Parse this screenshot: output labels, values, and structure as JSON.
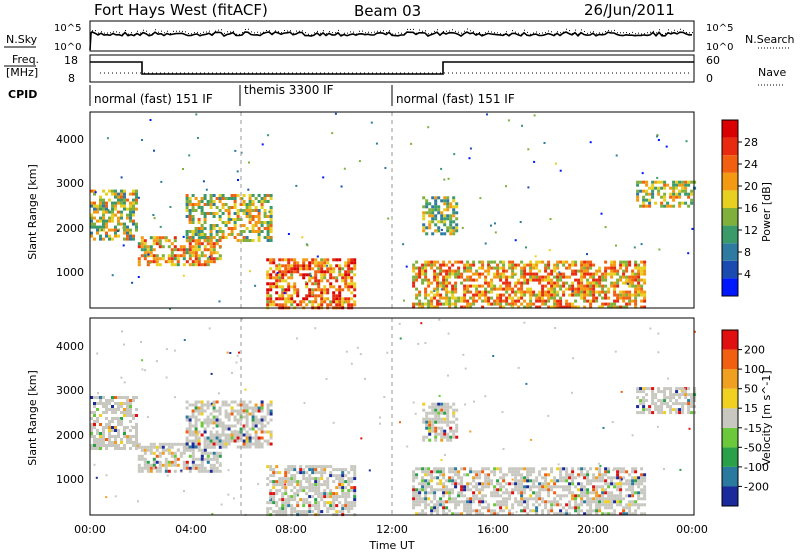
{
  "header": {
    "station": "Fort Hays West (fitACF)",
    "beam": "Beam 03",
    "date": "26/Jun/2011"
  },
  "left_labels": {
    "nsky": "N.Sky",
    "freq_line1": "Freq.",
    "freq_line2": "[MHz]",
    "cpid": "CPID"
  },
  "right_labels": {
    "nsearch": "N.Search",
    "nave": "Nave"
  },
  "noise_panel": {
    "ticks": [
      "10^5",
      "10^0"
    ],
    "right_ticks": [
      "10^5",
      "10^0"
    ]
  },
  "freq_panel": {
    "ticks": [
      "18",
      "8"
    ],
    "right_ticks": [
      "60",
      "0"
    ]
  },
  "cpid_segments": [
    {
      "label": "normal (fast) 151 IF",
      "start_hour": 0,
      "end_hour": 6
    },
    {
      "label": "themis 3300 IF",
      "start_hour": 6,
      "end_hour": 12
    },
    {
      "label": "normal (fast) 151 IF",
      "start_hour": 12,
      "end_hour": 24
    }
  ],
  "x_axis": {
    "label": "Time UT",
    "ticks": [
      "00:00",
      "04:00",
      "08:00",
      "12:00",
      "16:00",
      "20:00",
      "00:00"
    ]
  },
  "chart_data": [
    {
      "type": "heatmap",
      "panel": "power",
      "ylabel": "Slant Range [km]",
      "yticks": [
        "1000",
        "2000",
        "3000",
        "4000"
      ],
      "colorbar_label": "Power [dB]",
      "colorbar_ticks": [
        "4",
        "8",
        "12",
        "16",
        "20",
        "24",
        "28"
      ],
      "colorbar_colors": [
        "#0018ff",
        "#1b4bb0",
        "#2f7aa0",
        "#3a9a6a",
        "#7fb03c",
        "#e8d020",
        "#f39a12",
        "#f06010",
        "#e82a10",
        "#d80000"
      ],
      "xrange": [
        0,
        24
      ],
      "yrange": [
        180,
        4600
      ],
      "echo_regions": [
        {
          "t": [
            0.0,
            1.9
          ],
          "r": [
            1700,
            2850
          ],
          "level": 0.55
        },
        {
          "t": [
            1.9,
            5.2
          ],
          "r": [
            1150,
            1800
          ],
          "level": 0.7
        },
        {
          "t": [
            3.8,
            7.2
          ],
          "r": [
            1700,
            2750
          ],
          "level": 0.6
        },
        {
          "t": [
            7.0,
            10.5
          ],
          "r": [
            180,
            1300
          ],
          "level": 0.85
        },
        {
          "t": [
            12.8,
            22.0
          ],
          "r": [
            180,
            1250
          ],
          "level": 0.75
        },
        {
          "t": [
            13.2,
            14.6
          ],
          "r": [
            1850,
            2700
          ],
          "level": 0.5
        },
        {
          "t": [
            21.7,
            24.0
          ],
          "r": [
            2450,
            3050
          ],
          "level": 0.55
        }
      ]
    },
    {
      "type": "heatmap",
      "panel": "velocity",
      "ylabel": "Slant Range [km]",
      "yticks": [
        "1000",
        "2000",
        "3000",
        "4000"
      ],
      "colorbar_label": "Velocity [m s^-1]",
      "colorbar_ticks": [
        "200",
        "100",
        "50",
        "15",
        "-15",
        "-50",
        "-100",
        "-200"
      ],
      "colorbar_colors": [
        "#1a2a9a",
        "#2a7aa0",
        "#2aa04a",
        "#6ac83a",
        "#c8c8c0",
        "#f0d020",
        "#f0a020",
        "#f06010",
        "#e01010"
      ],
      "xrange": [
        0,
        24
      ],
      "yrange": [
        180,
        4600
      ],
      "echo_regions": [
        {
          "t": [
            0.0,
            1.9
          ],
          "r": [
            1700,
            2850
          ],
          "level": 0.5
        },
        {
          "t": [
            1.9,
            5.2
          ],
          "r": [
            1150,
            1800
          ],
          "level": 0.5
        },
        {
          "t": [
            3.8,
            7.2
          ],
          "r": [
            1700,
            2750
          ],
          "level": 0.5
        },
        {
          "t": [
            7.0,
            10.5
          ],
          "r": [
            180,
            1300
          ],
          "level": 0.4
        },
        {
          "t": [
            12.8,
            22.0
          ],
          "r": [
            180,
            1250
          ],
          "level": 0.5
        },
        {
          "t": [
            13.2,
            14.6
          ],
          "r": [
            1850,
            2700
          ],
          "level": 0.5
        },
        {
          "t": [
            21.7,
            24.0
          ],
          "r": [
            2450,
            3050
          ],
          "level": 0.5
        }
      ]
    }
  ]
}
